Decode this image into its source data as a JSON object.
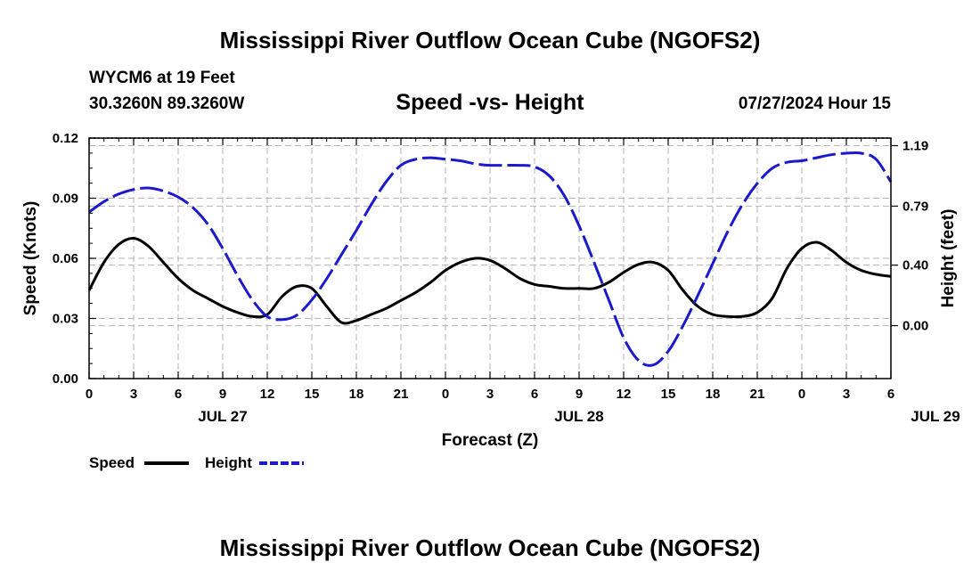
{
  "main_title": "Mississippi River Outflow Ocean Cube (NGOFS2)",
  "footer_title": "Mississippi River Outflow Ocean Cube (NGOFS2)",
  "station": "WYCM6 at 19 Feet",
  "coords": "30.3260N  89.3260W",
  "datetime": "07/27/2024 Hour 15",
  "colors": {
    "speed": "#000000",
    "height": "#1a1acc",
    "grid": "#b4b4b4"
  },
  "chart_data": {
    "type": "line",
    "title": "Speed -vs- Height",
    "xlabel": "Forecast (Z)",
    "ylabel": "Speed (Knots)",
    "y2label": "Height (feet)",
    "x_tick_labels": [
      "0",
      "3",
      "6",
      "9",
      "12",
      "15",
      "18",
      "21",
      "0",
      "3",
      "6",
      "9",
      "12",
      "15",
      "18",
      "21",
      "0",
      "3",
      "6"
    ],
    "date_labels": [
      {
        "label": "JUL 27",
        "hour": 9
      },
      {
        "label": "JUL 28",
        "hour": 33
      },
      {
        "label": "JUL 29",
        "hour": 57
      }
    ],
    "xlim": [
      0,
      54
    ],
    "ylim": [
      0,
      0.12
    ],
    "y_ticks": [
      "0.00",
      "0.03",
      "0.06",
      "0.09",
      "0.12"
    ],
    "y2lim": [
      -0.35,
      1.24
    ],
    "y2_ticks": [
      "0.00",
      "0.40",
      "0.79",
      "1.19"
    ],
    "legend": [
      {
        "name": "Speed",
        "style": "solid"
      },
      {
        "name": "Height",
        "style": "dashed"
      }
    ],
    "series": [
      {
        "name": "Speed",
        "axis": "left",
        "x": [
          0,
          1,
          2,
          3,
          4,
          5,
          6,
          7,
          8,
          9,
          10,
          11,
          12,
          13,
          14,
          15,
          16,
          17,
          18,
          19,
          20,
          21,
          22,
          23,
          24,
          25,
          26,
          27,
          28,
          29,
          30,
          31,
          32,
          33,
          34,
          35,
          36,
          37,
          38,
          39,
          40,
          41,
          42,
          43,
          44,
          45,
          46,
          47,
          48,
          49,
          50,
          51,
          52,
          53,
          54
        ],
        "values": [
          0.044,
          0.058,
          0.067,
          0.07,
          0.066,
          0.058,
          0.05,
          0.044,
          0.04,
          0.036,
          0.033,
          0.031,
          0.032,
          0.041,
          0.046,
          0.045,
          0.036,
          0.028,
          0.029,
          0.032,
          0.035,
          0.039,
          0.043,
          0.048,
          0.054,
          0.058,
          0.06,
          0.059,
          0.055,
          0.05,
          0.047,
          0.046,
          0.045,
          0.045,
          0.045,
          0.048,
          0.053,
          0.057,
          0.058,
          0.054,
          0.044,
          0.036,
          0.032,
          0.031,
          0.031,
          0.033,
          0.04,
          0.055,
          0.065,
          0.068,
          0.064,
          0.058,
          0.054,
          0.052,
          0.051
        ]
      },
      {
        "name": "Height",
        "axis": "right",
        "x": [
          0,
          1,
          2,
          3,
          4,
          5,
          6,
          7,
          8,
          9,
          10,
          11,
          12,
          13,
          14,
          15,
          16,
          17,
          18,
          19,
          20,
          21,
          22,
          23,
          24,
          25,
          26,
          27,
          28,
          29,
          30,
          31,
          32,
          33,
          34,
          35,
          36,
          37,
          38,
          39,
          40,
          41,
          42,
          43,
          44,
          45,
          46,
          47,
          48,
          49,
          50,
          51,
          52,
          53,
          54
        ],
        "values": [
          0.75,
          0.82,
          0.87,
          0.9,
          0.91,
          0.89,
          0.85,
          0.78,
          0.67,
          0.51,
          0.33,
          0.17,
          0.06,
          0.04,
          0.07,
          0.17,
          0.31,
          0.47,
          0.63,
          0.8,
          0.95,
          1.06,
          1.1,
          1.11,
          1.1,
          1.09,
          1.07,
          1.06,
          1.06,
          1.06,
          1.05,
          0.99,
          0.86,
          0.66,
          0.42,
          0.17,
          -0.08,
          -0.23,
          -0.26,
          -0.17,
          0.0,
          0.2,
          0.41,
          0.62,
          0.8,
          0.94,
          1.04,
          1.08,
          1.09,
          1.11,
          1.13,
          1.14,
          1.14,
          1.1,
          0.95
        ]
      }
    ]
  }
}
